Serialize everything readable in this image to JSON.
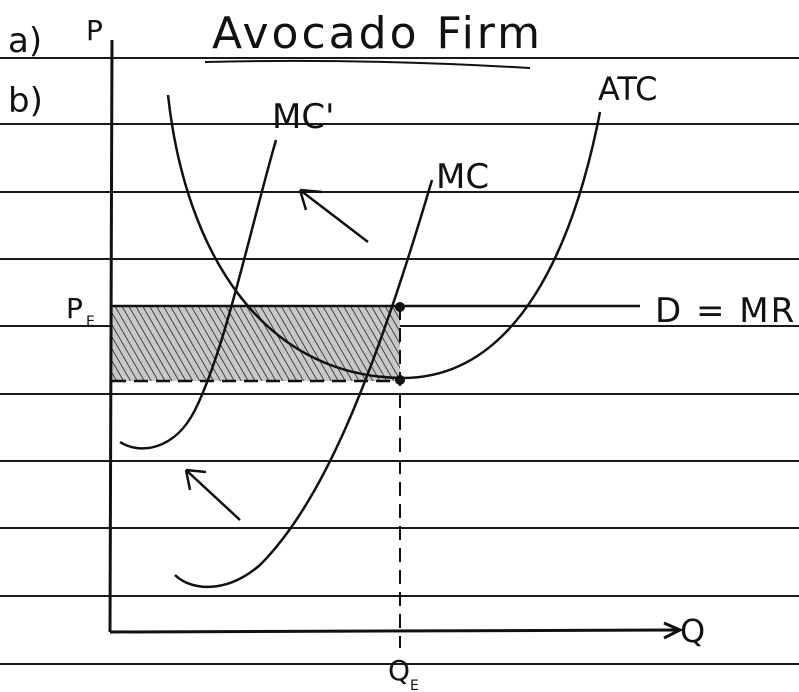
{
  "labels": {
    "part_a": "a)",
    "part_b": "b)",
    "title": "Avocado Firm",
    "price_axis": "P",
    "quantity_axis": "Q",
    "price_eq": "P",
    "price_eq_sub": "E",
    "quantity_eq": "Q",
    "quantity_eq_sub": "E",
    "atc": "ATC",
    "mc": "MC",
    "mc_prime": "MC'",
    "demand": "D = MR"
  },
  "colors": {
    "ink": "#111111",
    "ruled_line": "#1a1a1a",
    "shade": "#9a9a9a",
    "paper": "#ffffff"
  }
}
